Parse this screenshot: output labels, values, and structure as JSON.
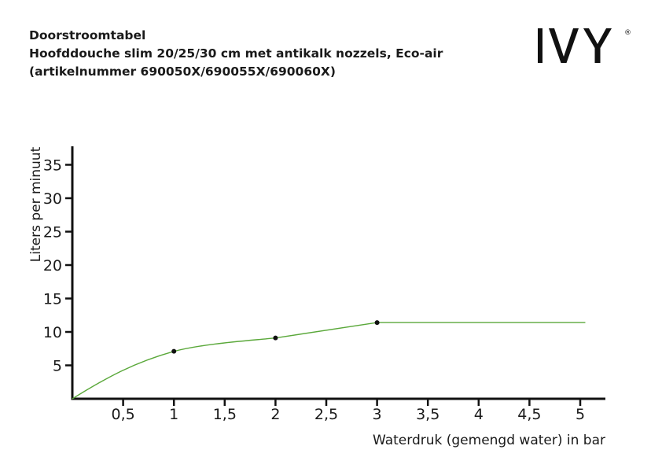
{
  "header": {
    "title_line1": "Doorstroomtabel",
    "title_line2": "Hoofddouche slim 20/25/30 cm met antikalk nozzels, Eco-air",
    "title_line3": "(artikelnummer 690050X/690055X/690060X)"
  },
  "logo": {
    "text": "IVY",
    "mark": "®"
  },
  "chart_data": {
    "type": "line",
    "xlabel": "Waterdruk (gemengd water) in bar",
    "ylabel": "Liters per minuut",
    "xlim": [
      0,
      5.25
    ],
    "ylim": [
      0,
      38
    ],
    "x_ticks": [
      0.5,
      1,
      1.5,
      2,
      2.5,
      3,
      3.5,
      4,
      4.5,
      5
    ],
    "x_tick_labels": [
      "0,5",
      "1",
      "1,5",
      "2",
      "2,5",
      "3",
      "3,5",
      "4",
      "4,5",
      "5"
    ],
    "y_ticks": [
      5,
      10,
      15,
      20,
      25,
      30,
      35
    ],
    "y_tick_labels": [
      "5",
      "10",
      "15",
      "20",
      "25",
      "30",
      "35"
    ],
    "grid": false,
    "series": [
      {
        "color": "#5aa83a",
        "x": [
          0,
          1,
          2,
          3,
          5.05
        ],
        "y": [
          0,
          7.1,
          9.1,
          11.4,
          11.4
        ],
        "markers": [
          {
            "x": 1,
            "y": 7.1
          },
          {
            "x": 2,
            "y": 9.1
          },
          {
            "x": 3,
            "y": 11.4
          }
        ]
      }
    ]
  }
}
